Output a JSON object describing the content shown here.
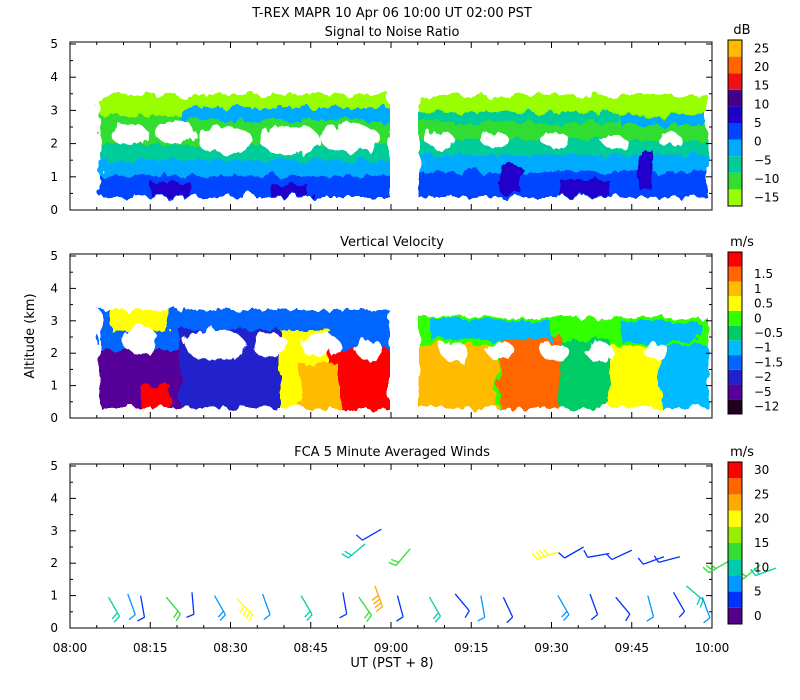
{
  "figure": {
    "title_line1": "T-REX   MAPR 10 Apr 06   10:00 UT   02:00   PST"
  },
  "colors": {
    "snr": [
      "#99ff00",
      "#33dd33",
      "#00cc99",
      "#00aaff",
      "#0044ff",
      "#2200cc",
      "#440088",
      "#ee1111",
      "#ff6600",
      "#ffbb00"
    ],
    "velocity": [
      "#220022",
      "#550099",
      "#2222cc",
      "#0066ff",
      "#00bbff",
      "#00cc66",
      "#33ff00",
      "#ffff00",
      "#ffbb00",
      "#ff6600",
      "#ff0000"
    ],
    "winds": [
      "#550088",
      "#0033ff",
      "#0099ff",
      "#00ccaa",
      "#33dd33",
      "#99ee00",
      "#ffff00",
      "#ffaa00",
      "#ff6600",
      "#ff0000"
    ]
  },
  "chart_data": [
    {
      "type": "heatmap",
      "title": "Signal to Noise Ratio",
      "ylabel": "",
      "xlabel": "",
      "x_range": [
        "08:00",
        "10:00"
      ],
      "ylim": [
        0,
        5
      ],
      "yticks": [
        "0",
        "1",
        "2",
        "3",
        "4",
        "5"
      ],
      "data_gap": [
        "09:00",
        "09:05"
      ],
      "echo_top_km": 3.2,
      "colorbar": {
        "unit": "dB",
        "labels": [
          "−15",
          "−10",
          "−5",
          "0",
          "5",
          "10",
          "15",
          "20",
          "25"
        ],
        "levels": [
          -15,
          -10,
          -5,
          0,
          5,
          10,
          15,
          20,
          25
        ]
      }
    },
    {
      "type": "heatmap",
      "title": "Vertical Velocity",
      "ylabel": "Altitude (km)",
      "xlabel": "",
      "x_range": [
        "08:00",
        "10:00"
      ],
      "ylim": [
        0,
        5
      ],
      "yticks": [
        "0",
        "1",
        "2",
        "3",
        "4",
        "5"
      ],
      "data_gap": [
        "09:00",
        "09:05"
      ],
      "colorbar": {
        "unit": "m/s",
        "labels": [
          "−12",
          "−5",
          "−2",
          "−1.5",
          "−1",
          "−0.5",
          "0",
          "0.5",
          "1",
          "1.5"
        ],
        "levels": [
          -12,
          -5,
          -2,
          -1.5,
          -1,
          -0.5,
          0,
          0.5,
          1,
          1.5
        ]
      }
    },
    {
      "type": "scatter",
      "title": "FCA 5 Minute Averaged Winds",
      "ylabel": "",
      "xlabel": "UT  (PST + 8)",
      "xticks": [
        "08:00",
        "08:15",
        "08:30",
        "08:45",
        "09:00",
        "09:15",
        "09:30",
        "09:45",
        "10:00"
      ],
      "ylim": [
        0,
        5
      ],
      "yticks": [
        "0",
        "1",
        "2",
        "3",
        "4",
        "5"
      ],
      "colorbar": {
        "unit": "m/s",
        "labels": [
          "0",
          "5",
          "10",
          "15",
          "20",
          "25",
          "30"
        ],
        "levels": [
          0,
          5,
          10,
          15,
          20,
          25,
          30
        ]
      },
      "barbs": [
        {
          "t": 8.12,
          "alt": 0.95,
          "dir": 150,
          "spd": 10
        },
        {
          "t": 8.18,
          "alt": 1.05,
          "dir": 160,
          "spd": 6
        },
        {
          "t": 8.22,
          "alt": 1.0,
          "dir": 170,
          "spd": 5
        },
        {
          "t": 8.3,
          "alt": 0.95,
          "dir": 140,
          "spd": 12
        },
        {
          "t": 8.38,
          "alt": 1.1,
          "dir": 175,
          "spd": 5
        },
        {
          "t": 8.45,
          "alt": 1.0,
          "dir": 150,
          "spd": 8
        },
        {
          "t": 8.52,
          "alt": 0.9,
          "dir": 135,
          "spd": 20
        },
        {
          "t": 8.6,
          "alt": 1.05,
          "dir": 160,
          "spd": 7
        },
        {
          "t": 8.72,
          "alt": 1.0,
          "dir": 150,
          "spd": 10
        },
        {
          "t": 8.85,
          "alt": 1.1,
          "dir": 170,
          "spd": 4
        },
        {
          "t": 8.9,
          "alt": 0.95,
          "dir": 145,
          "spd": 12
        },
        {
          "t": 8.95,
          "alt": 1.3,
          "dir": 160,
          "spd": 22
        },
        {
          "t": 9.02,
          "alt": 1.0,
          "dir": 165,
          "spd": 5
        },
        {
          "t": 9.12,
          "alt": 0.95,
          "dir": 150,
          "spd": 9
        },
        {
          "t": 9.2,
          "alt": 1.05,
          "dir": 140,
          "spd": 3
        },
        {
          "t": 9.28,
          "alt": 1.0,
          "dir": 170,
          "spd": 6
        },
        {
          "t": 9.35,
          "alt": 0.95,
          "dir": 155,
          "spd": 4
        },
        {
          "t": 9.52,
          "alt": 1.0,
          "dir": 150,
          "spd": 8
        },
        {
          "t": 9.62,
          "alt": 1.05,
          "dir": 160,
          "spd": 5
        },
        {
          "t": 9.7,
          "alt": 0.95,
          "dir": 140,
          "spd": 3
        },
        {
          "t": 9.8,
          "alt": 1.0,
          "dir": 165,
          "spd": 7
        },
        {
          "t": 9.88,
          "alt": 1.1,
          "dir": 150,
          "spd": 4
        },
        {
          "t": 9.92,
          "alt": 1.3,
          "dir": 130,
          "spd": 11
        },
        {
          "t": 9.97,
          "alt": 0.95,
          "dir": 160,
          "spd": 6
        },
        {
          "t": 8.92,
          "alt": 2.6,
          "dir": 230,
          "spd": 10
        },
        {
          "t": 8.97,
          "alt": 3.05,
          "dir": 240,
          "spd": 5
        },
        {
          "t": 9.06,
          "alt": 2.45,
          "dir": 220,
          "spd": 12
        },
        {
          "t": 9.52,
          "alt": 2.35,
          "dir": 250,
          "spd": 18
        },
        {
          "t": 9.6,
          "alt": 2.5,
          "dir": 240,
          "spd": 5
        },
        {
          "t": 9.68,
          "alt": 2.3,
          "dir": 260,
          "spd": 3
        },
        {
          "t": 9.75,
          "alt": 2.4,
          "dir": 245,
          "spd": 4
        },
        {
          "t": 9.85,
          "alt": 2.2,
          "dir": 250,
          "spd": 4
        },
        {
          "t": 9.9,
          "alt": 2.2,
          "dir": 255,
          "spd": 5
        },
        {
          "t": 10.05,
          "alt": 2.05,
          "dir": 240,
          "spd": 14
        },
        {
          "t": 10.15,
          "alt": 1.95,
          "dir": 230,
          "spd": 12
        },
        {
          "t": 10.2,
          "alt": 1.85,
          "dir": 250,
          "spd": 10
        }
      ]
    }
  ]
}
